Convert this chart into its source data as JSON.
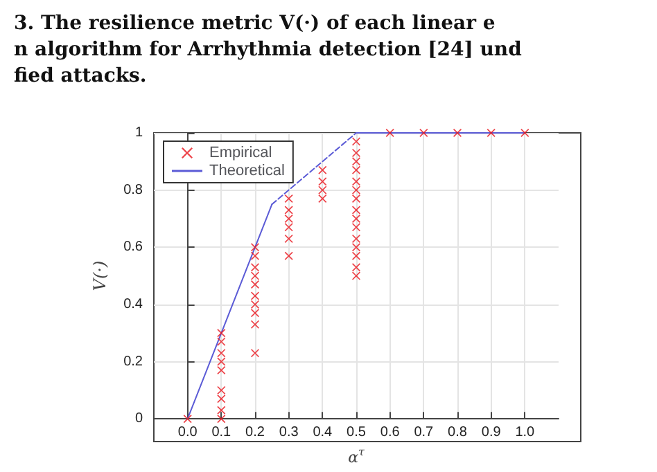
{
  "chart_data": {
    "type": "scatter",
    "annotations": [
      "3. The resilience metric V(·) of each linear e",
      "n algorithm for Arrhythmia detection [24] und",
      "fied attacks."
    ],
    "xlabel": "α$^{τ}$",
    "ylabel": "V(·)",
    "xlim": [
      -0.1,
      1.1
    ],
    "xticks": [
      {
        "value": 0,
        "label": "0.0"
      },
      {
        "value": 0.1,
        "label": "0.1"
      },
      {
        "value": 0.2,
        "label": "0.2"
      },
      {
        "value": 0.3,
        "label": "0.3"
      },
      {
        "value": 0.4,
        "label": "0.4"
      },
      {
        "value": 0.5,
        "label": "0.5"
      },
      {
        "value": 0.6,
        "label": "0.6"
      },
      {
        "value": 0.7,
        "label": "0.7"
      },
      {
        "value": 0.8,
        "label": "0.8"
      },
      {
        "value": 0.9,
        "label": "0.9"
      },
      {
        "value": 1,
        "label": "1.0"
      }
    ],
    "ylim": [
      0,
      1
    ],
    "yticks": [
      0,
      0.2,
      0.4,
      0.6,
      0.8,
      1
    ],
    "grid": true,
    "legend": "top left",
    "series": [
      {
        "name": "Empirical",
        "type": "scatter",
        "marker": "cross",
        "color": "#e8141b",
        "x": [
          0,
          0.1,
          0.1,
          0.1,
          0.1,
          0.1,
          0.1,
          0.1,
          0.1,
          0.1,
          0.2,
          0.2,
          0.2,
          0.2,
          0.2,
          0.2,
          0.2,
          0.2,
          0.2,
          0.2,
          0.3,
          0.3,
          0.3,
          0.3,
          0.3,
          0.3,
          0.4,
          0.4,
          0.4,
          0.4,
          0.5,
          0.5,
          0.5,
          0.5,
          0.5,
          0.5,
          0.5,
          0.5,
          0.5,
          0.5,
          0.5,
          0.5,
          0.5,
          0.5,
          0.5,
          0.6,
          0.7,
          0.8,
          0.9,
          1
        ],
        "values": [
          0,
          0.3,
          0.27,
          0.23,
          0.2,
          0.17,
          0.1,
          0.07,
          0.03,
          0,
          0.6,
          0.57,
          0.53,
          0.5,
          0.47,
          0.43,
          0.4,
          0.37,
          0.33,
          0.23,
          0.77,
          0.73,
          0.7,
          0.67,
          0.63,
          0.57,
          0.87,
          0.83,
          0.8,
          0.77,
          0.97,
          0.93,
          0.9,
          0.87,
          0.83,
          0.8,
          0.77,
          0.73,
          0.7,
          0.67,
          0.63,
          0.6,
          0.57,
          0.53,
          0.5,
          1,
          1,
          1,
          1,
          1
        ]
      },
      {
        "name": "Theoretical",
        "type": "line",
        "marker": "none",
        "line_style": "solid",
        "color": "#5b5bd6",
        "x": [
          0,
          0.25
        ],
        "values": [
          0,
          0.75
        ]
      },
      {
        "type": "line",
        "marker": "none",
        "line_style": "dashed",
        "color": "#5b5bd6",
        "x": [
          0.25,
          0.5
        ],
        "values": [
          0.75,
          1
        ]
      },
      {
        "type": "line",
        "marker": "none",
        "line_style": "solid",
        "color": "#5b5bd6",
        "x": [
          0.5,
          1
        ],
        "values": [
          1,
          1
        ]
      }
    ]
  }
}
